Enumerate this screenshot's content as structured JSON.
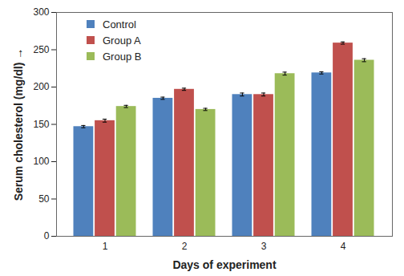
{
  "chart_data": {
    "type": "bar",
    "x_label": "Days of experiment",
    "y_label": "Serum cholesterol (mg/dl)",
    "categories": [
      "1",
      "2",
      "3",
      "4"
    ],
    "series": [
      {
        "name": "Control",
        "color": "#4f81bd",
        "values": [
          147,
          185,
          190,
          219
        ],
        "errors": [
          1.5,
          1.5,
          2,
          1.5
        ]
      },
      {
        "name": "Group A",
        "color": "#c0504d",
        "values": [
          155,
          197,
          190,
          259
        ],
        "errors": [
          2,
          1.5,
          2,
          1.5
        ]
      },
      {
        "name": "Group B",
        "color": "#9bbb59",
        "values": [
          174,
          170,
          218,
          236
        ],
        "errors": [
          1.5,
          1.5,
          2,
          2
        ]
      }
    ],
    "ylim": [
      0,
      300
    ],
    "yticks": [
      0,
      50,
      100,
      150,
      200,
      250,
      300
    ],
    "grid": false,
    "legend": "top-left"
  }
}
